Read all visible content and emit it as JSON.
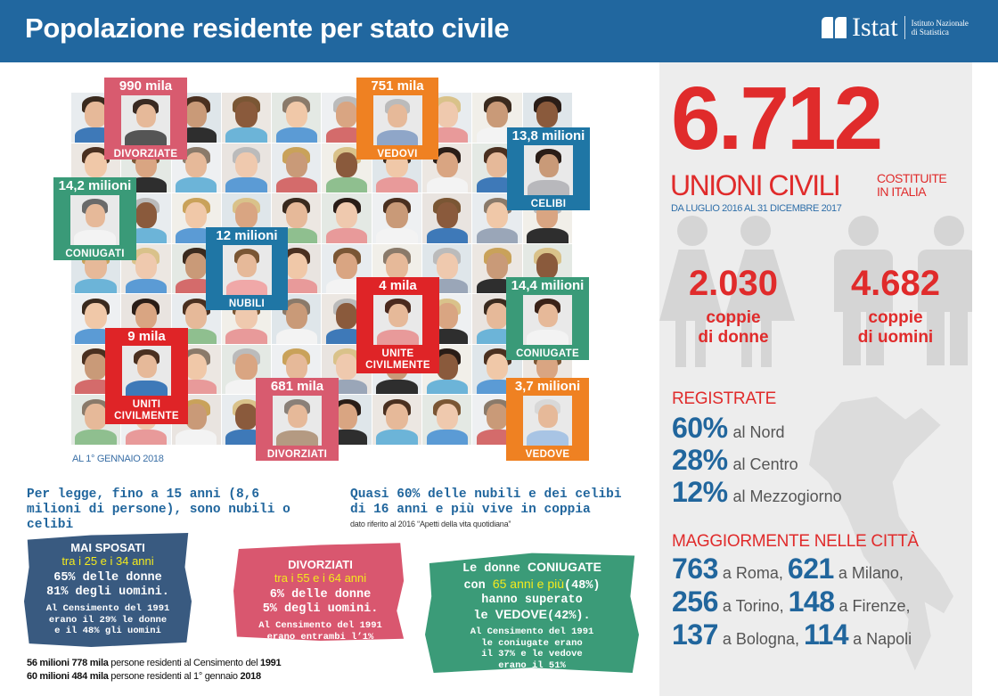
{
  "header": {
    "title": "Popolazione residente per stato civile",
    "logo": {
      "brand": "Istat",
      "line1": "Istituto Nazionale",
      "line2": "di Statistica"
    }
  },
  "colors": {
    "header_blue": "#21679f",
    "red": "#e02b2b",
    "blue_text": "#21669d",
    "pink": "#d85b6f",
    "orange": "#ef8122",
    "teal_blue": "#1f76a5",
    "green": "#3a9a78",
    "panel_gray": "#ededed"
  },
  "mosaic": {
    "date_note": "AL 1° GENNAIO 2018",
    "boxes": [
      {
        "value": "990 mila",
        "label": "DIVORZIATE",
        "color": "pink"
      },
      {
        "value": "751 mila",
        "label": "VEDOVI",
        "color": "orange"
      },
      {
        "value": "13,8 milioni",
        "label": "CELIBI",
        "color": "blue"
      },
      {
        "value": "14,2 milioni",
        "label": "CONIUGATI",
        "color": "green"
      },
      {
        "value": "12 milioni",
        "label": "NUBILI",
        "color": "blue"
      },
      {
        "value": "4 mila",
        "label": "UNITE CIVILMENTE",
        "color": "red"
      },
      {
        "value": "14,4 milioni",
        "label": "CONIUGATE",
        "color": "green"
      },
      {
        "value": "9 mila",
        "label": "UNITI CIVILMENTE",
        "color": "red"
      },
      {
        "value": "681 mila",
        "label": "DIVORZIATI",
        "color": "pink"
      },
      {
        "value": "3,7 milioni",
        "label": "VEDOVE",
        "color": "orange"
      }
    ]
  },
  "facts": {
    "left": "Per legge, fino a 15 anni (8,6 milioni di persone), sono nubili o celibi",
    "right": "Quasi 60% delle nubili e dei celibi di 16 anni e più vive in coppia",
    "right_note": "dato  riferito al 2016 “Apetti della vita quotidiana”"
  },
  "cards": [
    {
      "title": "MAI SPOSATI",
      "age": "tra i 25 e i 34 anni",
      "main": [
        "65% delle donne",
        "81% degli uomini."
      ],
      "census": [
        "Al Censimento del 1991",
        "erano il 29% le donne",
        "e il 48% gli uomini"
      ]
    },
    {
      "title": "DIVORZIATI",
      "age": "tra i 55 e i 64 anni",
      "main": [
        "6% delle donne",
        "5% degli uomini."
      ],
      "census": [
        "Al Censimento del 1991",
        "erano entrambi l’1%"
      ]
    },
    {
      "line1_pre": "Le donne ",
      "line1_bold": "CONIUGATE",
      "line2_pre": "con ",
      "line2_yellow": "65 anni e più",
      "line2_post": "(48%)",
      "line3": "hanno superato",
      "line4_pre": "le ",
      "line4_bold": "VEDOVE",
      "line4_post": "(42%).",
      "census": [
        "Al Censimento del 1991",
        "le coniugate erano",
        "il 37% e le vedove",
        "erano il 51%"
      ]
    }
  ],
  "footer": {
    "line1": {
      "bold1": "56 milioni 778 mila",
      "text": " persone residenti al Censimento del ",
      "bold2": "1991"
    },
    "line2": {
      "bold1": "60 milioni 484 mila",
      "text": " persone residenti al 1° gennaio ",
      "bold2": "2018"
    }
  },
  "unions": {
    "total": "6.712",
    "label": "UNIONI CIVILI",
    "sub1": "COSTITUITE",
    "sub2": "IN ITALIA",
    "period": "DA  LUGLIO 2016 AL 31 DICEMBRE 2017",
    "women": {
      "value": "2.030",
      "l1": "coppie",
      "l2": "di donne"
    },
    "men": {
      "value": "4.682",
      "l1": "coppie",
      "l2": "di uomini"
    },
    "registered": {
      "title": "REGISTRATE",
      "rows": [
        {
          "pct": "60%",
          "area": "al Nord"
        },
        {
          "pct": "28%",
          "area": "al Centro"
        },
        {
          "pct": "12%",
          "area": "al Mezzogiorno"
        }
      ]
    },
    "cities": {
      "title": "MAGGIORMENTE NELLE CITTÀ",
      "rows": [
        [
          {
            "n": "763",
            "city": " a Roma, "
          },
          {
            "n": "621",
            "city": " a Milano,"
          }
        ],
        [
          {
            "n": "256",
            "city": " a Torino, "
          },
          {
            "n": "148",
            "city": " a Firenze,"
          }
        ],
        [
          {
            "n": "137",
            "city": " a Bologna, "
          },
          {
            "n": "114",
            "city": " a Napoli"
          }
        ]
      ]
    }
  }
}
